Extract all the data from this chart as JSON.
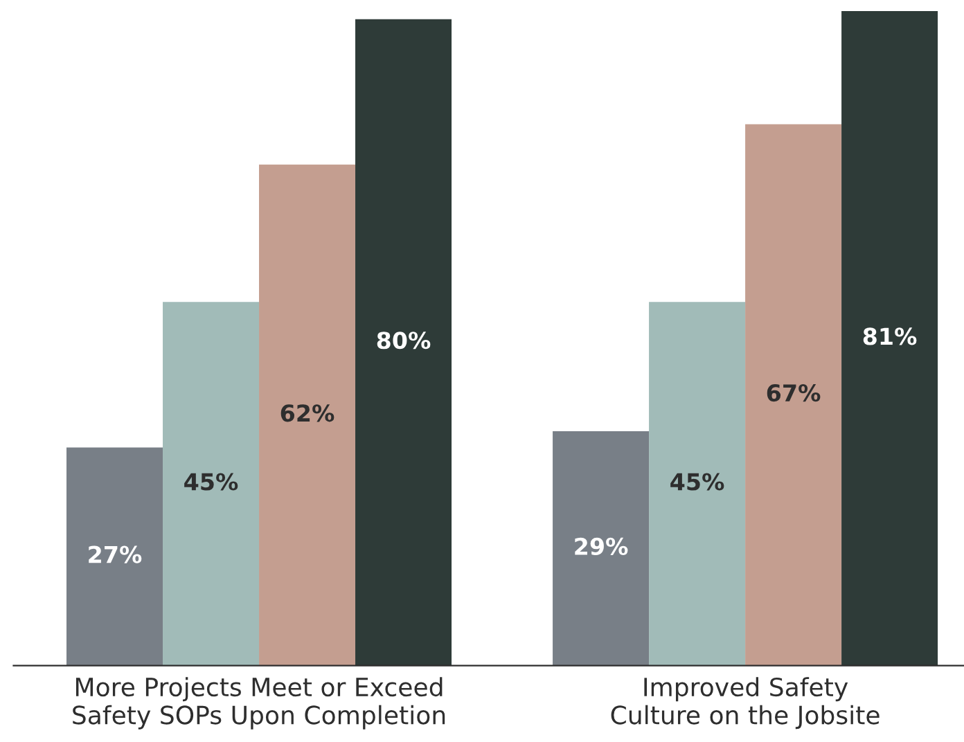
{
  "chart_data": {
    "type": "bar",
    "categories": [
      "More Projects Meet or Exceed\nSafety SOPs Upon Completion",
      "Improved Safety\nCulture on the Jobsite"
    ],
    "series": [
      {
        "color": "#787f87",
        "values": [
          27,
          29
        ],
        "value_labels": [
          "27%",
          "29%"
        ]
      },
      {
        "color": "#a1bbb8",
        "values": [
          45,
          45
        ],
        "value_labels": [
          "45%",
          "45%"
        ]
      },
      {
        "color": "#c49e90",
        "values": [
          62,
          67
        ],
        "value_labels": [
          "62%",
          "67%"
        ]
      },
      {
        "color": "#2e3b38",
        "values": [
          80,
          81
        ],
        "value_labels": [
          "80%",
          "81%"
        ]
      }
    ],
    "grid": false
  }
}
